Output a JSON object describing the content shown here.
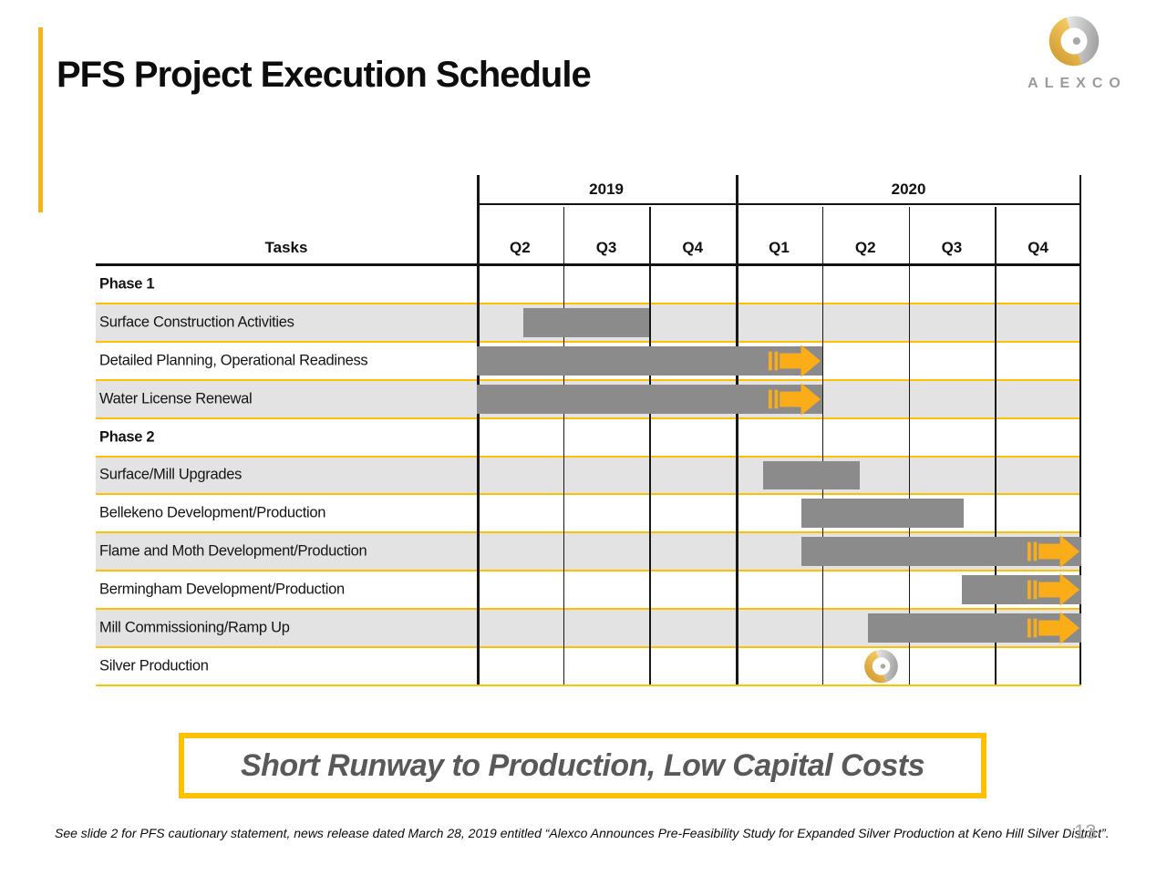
{
  "slide": {
    "title": "PFS Project Execution Schedule",
    "page_number": "13",
    "footnote": "See slide 2 for PFS cautionary statement, news release dated March 28, 2019 entitled “Alexco Announces Pre-Feasibility Study for Expanded Silver Production at Keno Hill Silver District”.",
    "banner": "Short Runway to Production, Low Capital Costs",
    "logo": {
      "wordmark": "ALEXCO"
    }
  },
  "colors": {
    "accent_gold": "#F7B318",
    "separator_gold": "#FFC000",
    "arrow_gold": "#FBAD18",
    "bar_gray": "#8B8B8B",
    "shaded_row_gray": "#E3E3E3",
    "banner_text_gray": "#595959",
    "grid_black": "#161616"
  },
  "chart_data": {
    "type": "gantt",
    "title": "PFS Project Execution Schedule",
    "tasks_header": "Tasks",
    "years": [
      {
        "label": "2019",
        "quarters": [
          "Q2",
          "Q3",
          "Q4"
        ]
      },
      {
        "label": "2020",
        "quarters": [
          "Q1",
          "Q2",
          "Q3",
          "Q4"
        ]
      }
    ],
    "quarter_labels": [
      "Q2",
      "Q3",
      "Q4",
      "Q1",
      "Q2",
      "Q3",
      "Q4"
    ],
    "units": "quarter offsets measured from start of 2019 Q2",
    "rows": [
      {
        "label": "Phase 1",
        "type": "phase",
        "shaded": false
      },
      {
        "label": "Surface Construction Activities",
        "type": "task",
        "shaded": true,
        "bar": {
          "start": 0.54,
          "end": 2.0,
          "arrow": false
        }
      },
      {
        "label": "Detailed Planning, Operational Readiness",
        "type": "task",
        "shaded": false,
        "bar": {
          "start": 0.0,
          "end": 4.0,
          "arrow": true
        }
      },
      {
        "label": "Water License Renewal",
        "type": "task",
        "shaded": true,
        "bar": {
          "start": 0.0,
          "end": 4.0,
          "arrow": true
        }
      },
      {
        "label": "Phase 2",
        "type": "phase",
        "shaded": false
      },
      {
        "label": "Surface/Mill Upgrades",
        "type": "task",
        "shaded": true,
        "bar": {
          "start": 3.32,
          "end": 4.43,
          "arrow": false
        }
      },
      {
        "label": "Bellekeno Development/Production",
        "type": "task",
        "shaded": false,
        "bar": {
          "start": 3.76,
          "end": 5.64,
          "arrow": false
        }
      },
      {
        "label": "Flame and Moth Development/Production",
        "type": "task",
        "shaded": true,
        "bar": {
          "start": 3.76,
          "end": 7.0,
          "arrow": true
        }
      },
      {
        "label": "Bermingham Development/Production",
        "type": "task",
        "shaded": false,
        "bar": {
          "start": 5.62,
          "end": 7.0,
          "arrow": true
        }
      },
      {
        "label": "Mill Commissioning/Ramp Up",
        "type": "task",
        "shaded": true,
        "bar": {
          "start": 4.53,
          "end": 7.0,
          "arrow": true
        }
      },
      {
        "label": "Silver Production",
        "type": "task",
        "shaded": false,
        "milestone": {
          "position": 4.68,
          "icon": "alexco-ring-icon"
        }
      }
    ]
  }
}
